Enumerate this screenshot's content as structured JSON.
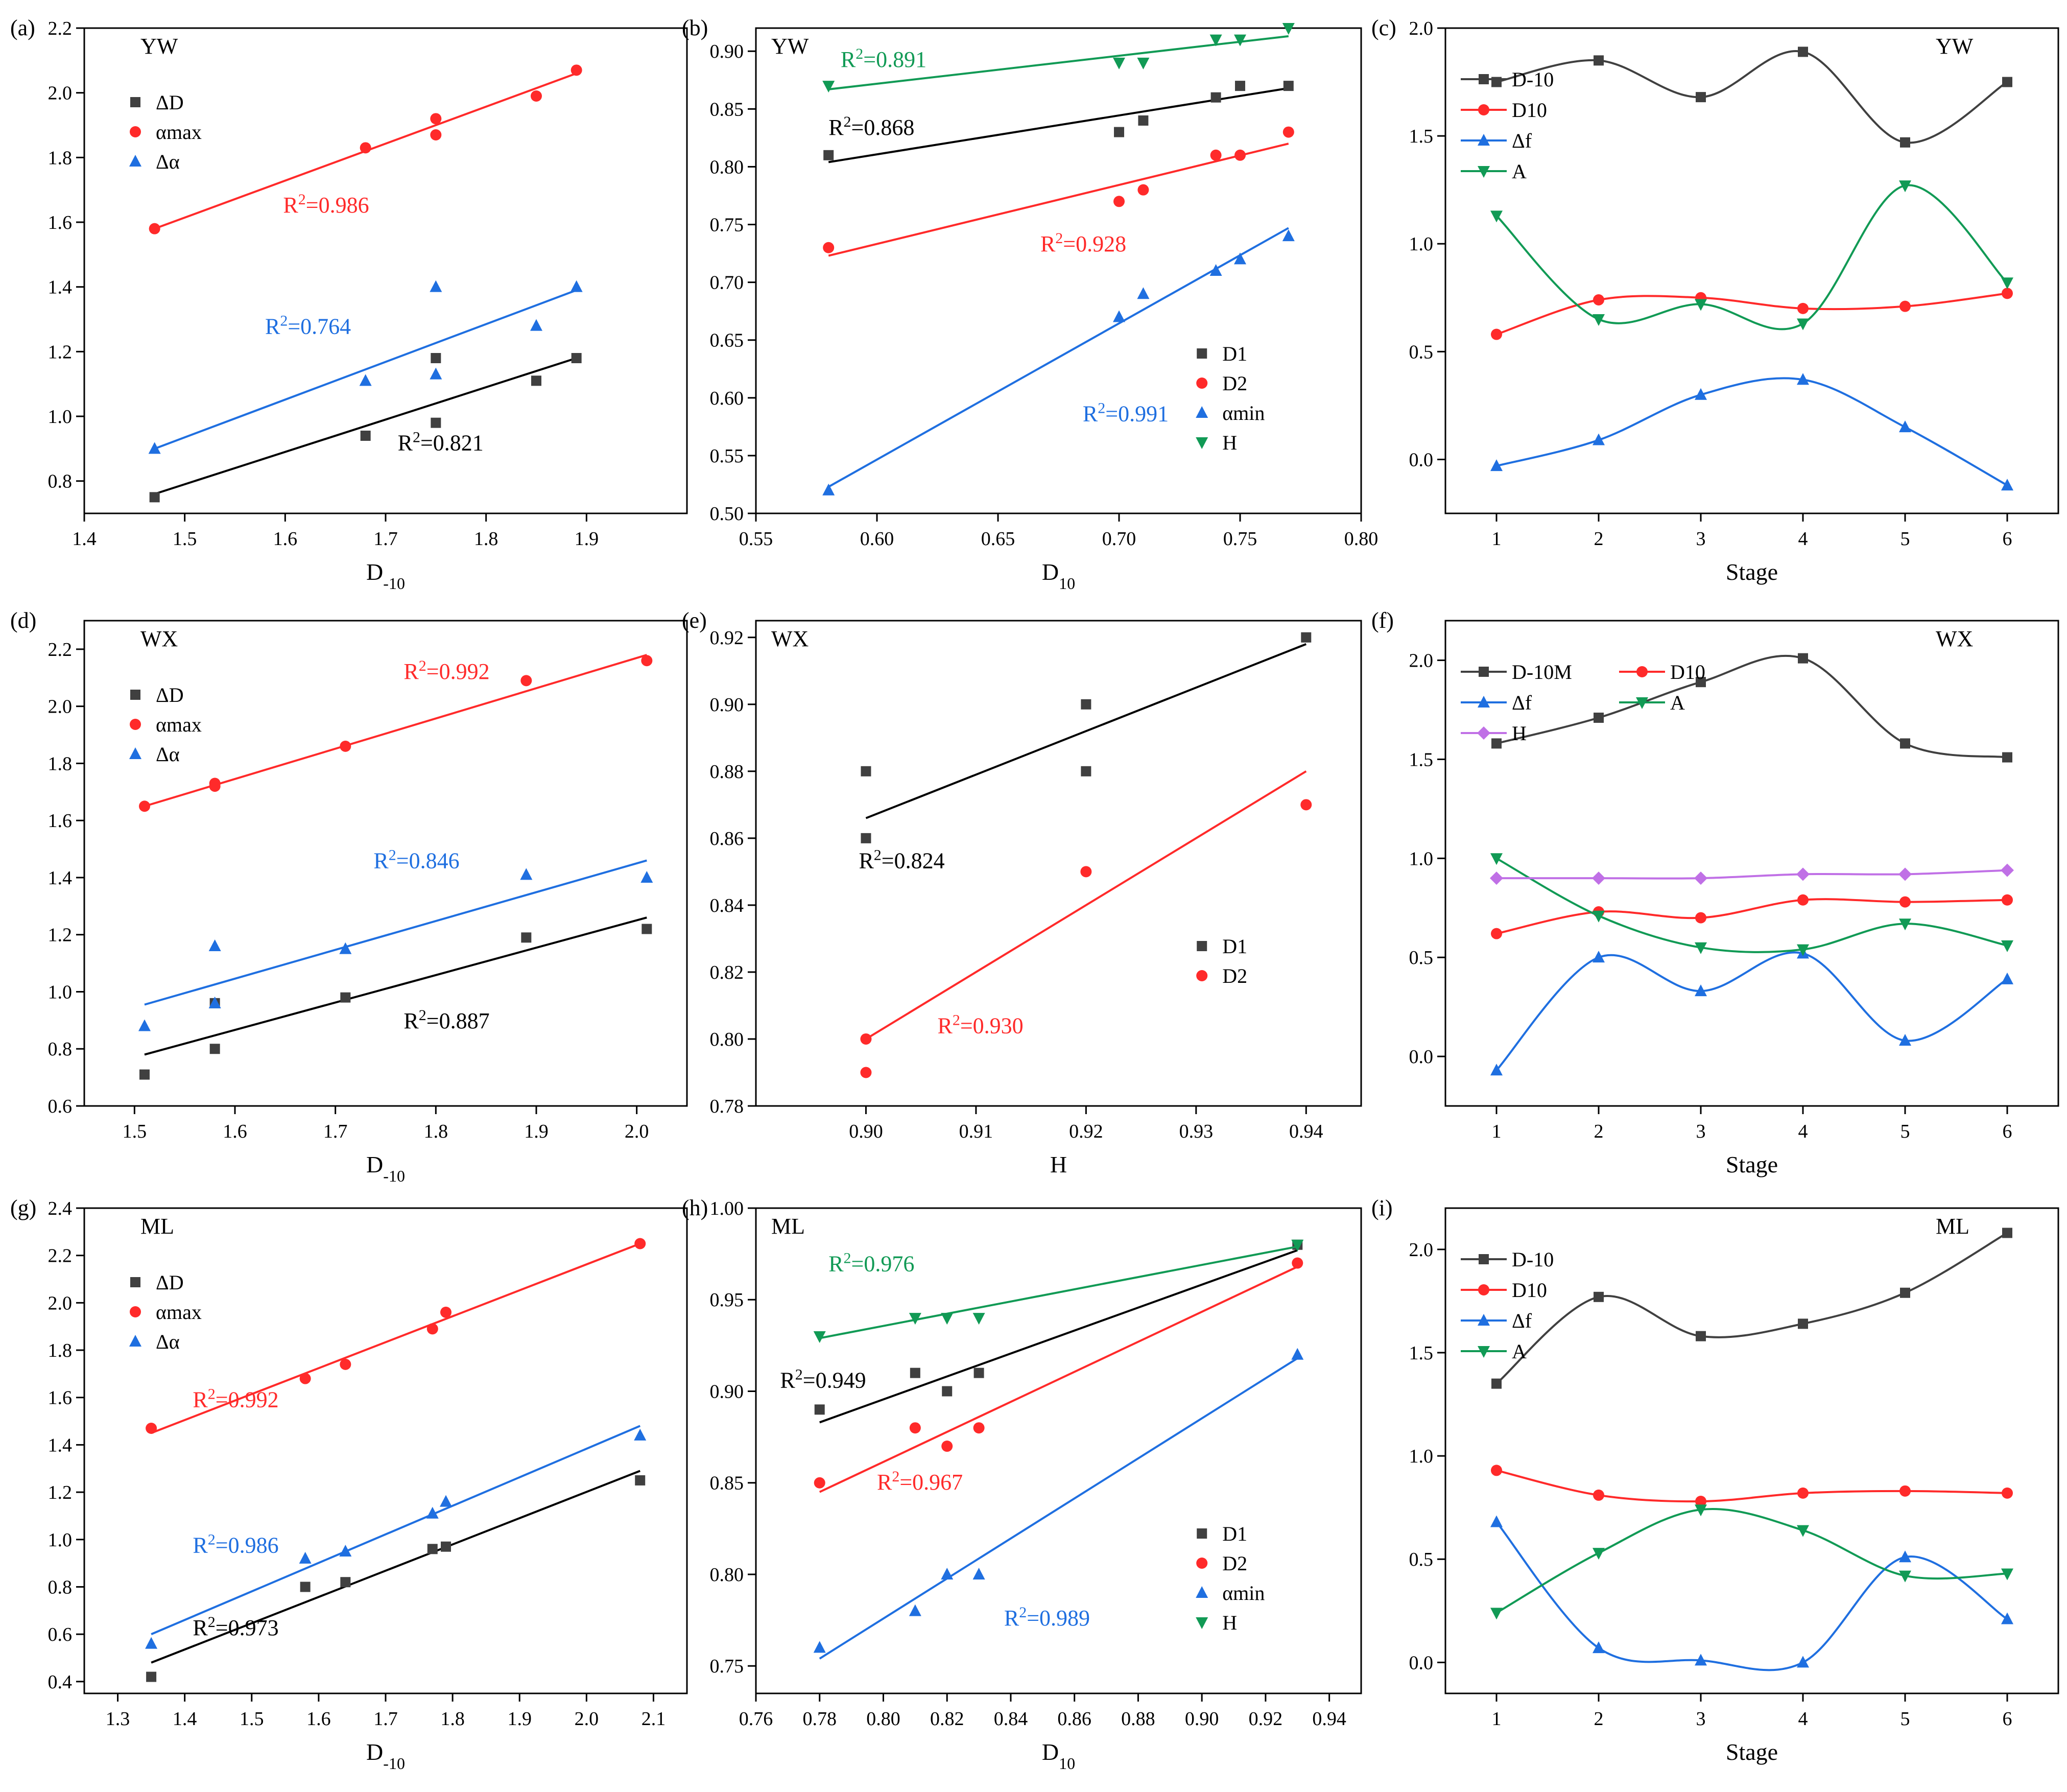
{
  "colors": {
    "black": "#000000",
    "dark": "#404040",
    "red": "#ff2a2a",
    "blue": "#1f6fe0",
    "green": "#119a55",
    "purple": "#c070e6"
  },
  "chart_data": [
    {
      "panel_label": "(a)",
      "site": "YW",
      "type": "scatter",
      "xlabel": {
        "main": "D",
        "sub": "-10"
      },
      "ylabel": "",
      "xlim": [
        1.4,
        2.0
      ],
      "ylim": [
        0.7,
        2.2
      ],
      "xticks": [
        "1.4",
        "1.5",
        "1.6",
        "1.7",
        "1.8",
        "1.9"
      ],
      "yticks": [
        "0.8",
        "1.0",
        "1.2",
        "1.4",
        "1.6",
        "1.8",
        "2.0",
        "2.2"
      ],
      "legend": "top-left",
      "series": [
        {
          "name": "ΔD",
          "marker": "square",
          "color": "#404040",
          "x": [
            1.47,
            1.68,
            1.75,
            1.75,
            1.85,
            1.89
          ],
          "y": [
            0.75,
            0.94,
            0.98,
            1.18,
            1.11,
            1.18
          ],
          "fit": [
            0.76,
            1.18
          ],
          "r2": "=0.821"
        },
        {
          "name": "αmax",
          "marker": "circle",
          "color": "#ff2a2a",
          "x": [
            1.47,
            1.68,
            1.75,
            1.75,
            1.85,
            1.89
          ],
          "y": [
            1.58,
            1.83,
            1.87,
            1.92,
            1.99,
            2.07
          ],
          "fit": [
            1.58,
            2.06
          ],
          "r2": "=0.986"
        },
        {
          "name": "Δα",
          "marker": "triangle-up",
          "color": "#1f6fe0",
          "x": [
            1.47,
            1.68,
            1.75,
            1.75,
            1.85,
            1.89
          ],
          "y": [
            0.9,
            1.11,
            1.13,
            1.4,
            1.28,
            1.4
          ],
          "fit": [
            0.9,
            1.39
          ],
          "r2": "=0.764"
        }
      ]
    },
    {
      "panel_label": "(b)",
      "site": "YW",
      "type": "scatter",
      "xlabel": {
        "main": "D",
        "sub": "10"
      },
      "ylabel": "",
      "xlim": [
        0.55,
        0.8
      ],
      "ylim": [
        0.5,
        0.92
      ],
      "xticks": [
        "0.55",
        "0.60",
        "0.65",
        "0.70",
        "0.75",
        "0.80"
      ],
      "yticks": [
        "0.50",
        "0.55",
        "0.60",
        "0.65",
        "0.70",
        "0.75",
        "0.80",
        "0.85",
        "0.90"
      ],
      "legend": "bottom-right",
      "series": [
        {
          "name": "D1",
          "marker": "square",
          "color": "#404040",
          "x": [
            0.58,
            0.7,
            0.71,
            0.74,
            0.75,
            0.77
          ],
          "y": [
            0.81,
            0.83,
            0.84,
            0.86,
            0.87,
            0.87
          ],
          "fit": [
            0.804,
            0.868
          ],
          "r2": "=0.868"
        },
        {
          "name": "D2",
          "marker": "circle",
          "color": "#ff2a2a",
          "x": [
            0.58,
            0.7,
            0.71,
            0.74,
            0.75,
            0.77
          ],
          "y": [
            0.73,
            0.77,
            0.78,
            0.81,
            0.81,
            0.83
          ],
          "fit": [
            0.723,
            0.82
          ],
          "r2": "=0.928"
        },
        {
          "name": "αmin",
          "marker": "triangle-up",
          "color": "#1f6fe0",
          "x": [
            0.58,
            0.7,
            0.71,
            0.74,
            0.75,
            0.77
          ],
          "y": [
            0.52,
            0.67,
            0.69,
            0.71,
            0.72,
            0.74
          ],
          "fit": [
            0.523,
            0.747
          ],
          "r2": "=0.991"
        },
        {
          "name": "H",
          "marker": "triangle-down",
          "color": "#119a55",
          "x": [
            0.58,
            0.7,
            0.71,
            0.74,
            0.75,
            0.77
          ],
          "y": [
            0.87,
            0.89,
            0.89,
            0.91,
            0.91,
            0.92
          ],
          "fit": [
            0.867,
            0.913
          ],
          "r2": "=0.891"
        }
      ]
    },
    {
      "panel_label": "(c)",
      "site": "YW",
      "type": "line",
      "xlabel": {
        "main": "Stage",
        "sub": ""
      },
      "ylabel": "",
      "xlim": [
        0.5,
        6.5
      ],
      "ylim": [
        -0.25,
        2.0
      ],
      "xticks": [
        "1",
        "2",
        "3",
        "4",
        "5",
        "6"
      ],
      "yticks": [
        "0.0",
        "0.5",
        "1.0",
        "1.5",
        "2.0"
      ],
      "legend": "top-left",
      "series": [
        {
          "name": "D-10",
          "marker": "square",
          "color": "#404040",
          "x": [
            1,
            2,
            3,
            4,
            5,
            6
          ],
          "y": [
            1.75,
            1.85,
            1.68,
            1.89,
            1.47,
            1.75
          ]
        },
        {
          "name": "D10",
          "marker": "circle",
          "color": "#ff2a2a",
          "x": [
            1,
            2,
            3,
            4,
            5,
            6
          ],
          "y": [
            0.58,
            0.74,
            0.75,
            0.7,
            0.71,
            0.77
          ]
        },
        {
          "name": "Δf",
          "marker": "triangle-up",
          "color": "#1f6fe0",
          "x": [
            1,
            2,
            3,
            4,
            5,
            6
          ],
          "y": [
            -0.03,
            0.09,
            0.3,
            0.37,
            0.15,
            -0.12
          ]
        },
        {
          "name": "A",
          "marker": "triangle-down",
          "color": "#119a55",
          "x": [
            1,
            2,
            3,
            4,
            5,
            6
          ],
          "y": [
            1.13,
            0.65,
            0.72,
            0.63,
            1.27,
            0.82
          ]
        }
      ]
    },
    {
      "panel_label": "(d)",
      "site": "WX",
      "type": "scatter",
      "xlabel": {
        "main": "D",
        "sub": "-10"
      },
      "ylabel": "",
      "xlim": [
        1.45,
        2.05
      ],
      "ylim": [
        0.6,
        2.3
      ],
      "xticks": [
        "1.5",
        "1.6",
        "1.7",
        "1.8",
        "1.9",
        "2.0"
      ],
      "yticks": [
        "0.6",
        "0.8",
        "1.0",
        "1.2",
        "1.4",
        "1.6",
        "1.8",
        "2.0",
        "2.2"
      ],
      "legend": "top-left",
      "series": [
        {
          "name": "ΔD",
          "marker": "square",
          "color": "#404040",
          "x": [
            1.51,
            1.58,
            1.58,
            1.71,
            1.89,
            2.01
          ],
          "y": [
            0.71,
            0.8,
            0.96,
            0.98,
            1.19,
            1.22
          ],
          "fit": [
            0.78,
            1.26
          ],
          "r2": "=0.887"
        },
        {
          "name": "αmax",
          "marker": "circle",
          "color": "#ff2a2a",
          "x": [
            1.51,
            1.58,
            1.58,
            1.71,
            1.89,
            2.01
          ],
          "y": [
            1.65,
            1.72,
            1.73,
            1.86,
            2.09,
            2.16
          ],
          "fit": [
            1.65,
            2.18
          ],
          "r2": "=0.992"
        },
        {
          "name": "Δα",
          "marker": "triangle-up",
          "color": "#1f6fe0",
          "x": [
            1.51,
            1.58,
            1.58,
            1.71,
            1.89,
            2.01
          ],
          "y": [
            0.88,
            1.16,
            0.96,
            1.15,
            1.41,
            1.4
          ],
          "fit": [
            0.955,
            1.46
          ],
          "r2": "=0.846"
        }
      ]
    },
    {
      "panel_label": "(e)",
      "site": "WX",
      "type": "scatter",
      "xlabel": {
        "main": "H",
        "sub": ""
      },
      "ylabel": "",
      "xlim": [
        0.89,
        0.945
      ],
      "ylim": [
        0.78,
        0.925
      ],
      "xticks": [
        "0.90",
        "0.91",
        "0.92",
        "0.93",
        "0.94"
      ],
      "yticks": [
        "0.78",
        "0.80",
        "0.82",
        "0.84",
        "0.86",
        "0.88",
        "0.90",
        "0.92"
      ],
      "legend": "bottom-right",
      "series": [
        {
          "name": "D1",
          "marker": "square",
          "color": "#404040",
          "x": [
            0.9,
            0.9,
            0.92,
            0.92,
            0.94
          ],
          "y": [
            0.88,
            0.86,
            0.9,
            0.88,
            0.92
          ],
          "fit": [
            0.866,
            0.918
          ],
          "r2": "=0.824"
        },
        {
          "name": "D2",
          "marker": "circle",
          "color": "#ff2a2a",
          "x": [
            0.9,
            0.9,
            0.92,
            0.94
          ],
          "y": [
            0.8,
            0.79,
            0.85,
            0.87
          ],
          "fit": [
            0.8,
            0.88
          ],
          "r2": "=0.930"
        }
      ]
    },
    {
      "panel_label": "(f)",
      "site": "WX",
      "type": "line",
      "xlabel": {
        "main": "Stage",
        "sub": ""
      },
      "ylabel": "",
      "xlim": [
        0.5,
        6.5
      ],
      "ylim": [
        -0.25,
        2.2
      ],
      "xticks": [
        "1",
        "2",
        "3",
        "4",
        "5",
        "6"
      ],
      "yticks": [
        "0.0",
        "0.5",
        "1.0",
        "1.5",
        "2.0"
      ],
      "legend": "top-left",
      "series": [
        {
          "name": "D-10M",
          "marker": "square",
          "color": "#404040",
          "x": [
            1,
            2,
            3,
            4,
            5,
            6
          ],
          "y": [
            1.58,
            1.71,
            1.89,
            2.01,
            1.58,
            1.51
          ]
        },
        {
          "name": "D10",
          "marker": "circle",
          "color": "#ff2a2a",
          "x": [
            1,
            2,
            3,
            4,
            5,
            6
          ],
          "y": [
            0.62,
            0.73,
            0.7,
            0.79,
            0.78,
            0.79
          ]
        },
        {
          "name": "Δf",
          "marker": "triangle-up",
          "color": "#1f6fe0",
          "x": [
            1,
            2,
            3,
            4,
            5,
            6
          ],
          "y": [
            -0.07,
            0.5,
            0.33,
            0.52,
            0.08,
            0.39
          ]
        },
        {
          "name": "A",
          "marker": "triangle-down",
          "color": "#119a55",
          "x": [
            1,
            2,
            3,
            4,
            5,
            6
          ],
          "y": [
            1.0,
            0.71,
            0.55,
            0.54,
            0.67,
            0.56
          ]
        },
        {
          "name": "H",
          "marker": "diamond",
          "color": "#c070e6",
          "x": [
            1,
            2,
            3,
            4,
            5,
            6
          ],
          "y": [
            0.9,
            0.9,
            0.9,
            0.92,
            0.92,
            0.94
          ]
        }
      ]
    },
    {
      "panel_label": "(g)",
      "site": "ML",
      "type": "scatter",
      "xlabel": {
        "main": "D",
        "sub": "-10"
      },
      "ylabel": "",
      "xlim": [
        1.25,
        2.15
      ],
      "ylim": [
        0.35,
        2.4
      ],
      "xticks": [
        "1.3",
        "1.4",
        "1.5",
        "1.6",
        "1.7",
        "1.8",
        "1.9",
        "2.0",
        "2.1"
      ],
      "yticks": [
        "0.4",
        "0.6",
        "0.8",
        "1.0",
        "1.2",
        "1.4",
        "1.6",
        "1.8",
        "2.0",
        "2.2",
        "2.4"
      ],
      "legend": "top-left",
      "series": [
        {
          "name": "ΔD",
          "marker": "square",
          "color": "#404040",
          "x": [
            1.35,
            1.58,
            1.64,
            1.77,
            1.79,
            2.08
          ],
          "y": [
            0.42,
            0.8,
            0.82,
            0.96,
            0.97,
            1.25
          ],
          "fit": [
            0.48,
            1.29
          ],
          "r2": "=0.973"
        },
        {
          "name": "αmax",
          "marker": "circle",
          "color": "#ff2a2a",
          "x": [
            1.35,
            1.58,
            1.64,
            1.77,
            1.79,
            2.08
          ],
          "y": [
            1.47,
            1.68,
            1.74,
            1.89,
            1.96,
            2.25
          ],
          "fit": [
            1.45,
            2.25
          ],
          "r2": "=0.992"
        },
        {
          "name": "Δα",
          "marker": "triangle-up",
          "color": "#1f6fe0",
          "x": [
            1.35,
            1.58,
            1.64,
            1.77,
            1.79,
            2.08
          ],
          "y": [
            0.56,
            0.92,
            0.95,
            1.11,
            1.16,
            1.44
          ],
          "fit": [
            0.6,
            1.48
          ],
          "r2": "=0.986"
        }
      ]
    },
    {
      "panel_label": "(h)",
      "site": "ML",
      "type": "scatter",
      "xlabel": {
        "main": "D",
        "sub": "10"
      },
      "ylabel": "",
      "xlim": [
        0.76,
        0.95
      ],
      "ylim": [
        0.735,
        1.0
      ],
      "xticks": [
        "0.76",
        "0.78",
        "0.80",
        "0.82",
        "0.84",
        "0.86",
        "0.88",
        "0.90",
        "0.92",
        "0.94"
      ],
      "yticks": [
        "0.75",
        "0.80",
        "0.85",
        "0.90",
        "0.95",
        "1.00"
      ],
      "legend": "bottom-right",
      "series": [
        {
          "name": "D1",
          "marker": "square",
          "color": "#404040",
          "x": [
            0.78,
            0.81,
            0.82,
            0.83,
            0.93
          ],
          "y": [
            0.89,
            0.91,
            0.9,
            0.91,
            0.98
          ],
          "fit": [
            0.883,
            0.977
          ],
          "r2": "=0.949"
        },
        {
          "name": "D2",
          "marker": "circle",
          "color": "#ff2a2a",
          "x": [
            0.78,
            0.81,
            0.82,
            0.83,
            0.93
          ],
          "y": [
            0.85,
            0.88,
            0.87,
            0.88,
            0.97
          ],
          "fit": [
            0.845,
            0.968
          ],
          "r2": "=0.967"
        },
        {
          "name": "αmin",
          "marker": "triangle-up",
          "color": "#1f6fe0",
          "x": [
            0.78,
            0.81,
            0.82,
            0.83,
            0.93
          ],
          "y": [
            0.76,
            0.78,
            0.8,
            0.8,
            0.92
          ],
          "fit": [
            0.754,
            0.918
          ],
          "r2": "=0.989"
        },
        {
          "name": "H",
          "marker": "triangle-down",
          "color": "#119a55",
          "x": [
            0.78,
            0.81,
            0.82,
            0.83,
            0.93
          ],
          "y": [
            0.93,
            0.94,
            0.94,
            0.94,
            0.98
          ],
          "fit": [
            0.929,
            0.979
          ],
          "r2": "=0.976"
        }
      ]
    },
    {
      "panel_label": "(i)",
      "site": "ML",
      "type": "line",
      "xlabel": {
        "main": "Stage",
        "sub": ""
      },
      "ylabel": "",
      "xlim": [
        0.5,
        6.5
      ],
      "ylim": [
        -0.15,
        2.2
      ],
      "xticks": [
        "1",
        "2",
        "3",
        "4",
        "5",
        "6"
      ],
      "yticks": [
        "0.0",
        "0.5",
        "1.0",
        "1.5",
        "2.0"
      ],
      "legend": "top-left",
      "series": [
        {
          "name": "D-10",
          "marker": "square",
          "color": "#404040",
          "x": [
            1,
            2,
            3,
            4,
            5,
            6
          ],
          "y": [
            1.35,
            1.77,
            1.58,
            1.64,
            1.79,
            2.08
          ]
        },
        {
          "name": "D10",
          "marker": "circle",
          "color": "#ff2a2a",
          "x": [
            1,
            2,
            3,
            4,
            5,
            6
          ],
          "y": [
            0.93,
            0.81,
            0.78,
            0.82,
            0.83,
            0.82
          ]
        },
        {
          "name": "Δf",
          "marker": "triangle-up",
          "color": "#1f6fe0",
          "x": [
            1,
            2,
            3,
            4,
            5,
            6
          ],
          "y": [
            0.68,
            0.07,
            0.01,
            0.0,
            0.51,
            0.21
          ]
        },
        {
          "name": "A",
          "marker": "triangle-down",
          "color": "#119a55",
          "x": [
            1,
            2,
            3,
            4,
            5,
            6
          ],
          "y": [
            0.24,
            0.53,
            0.74,
            0.64,
            0.42,
            0.43
          ]
        }
      ]
    }
  ]
}
